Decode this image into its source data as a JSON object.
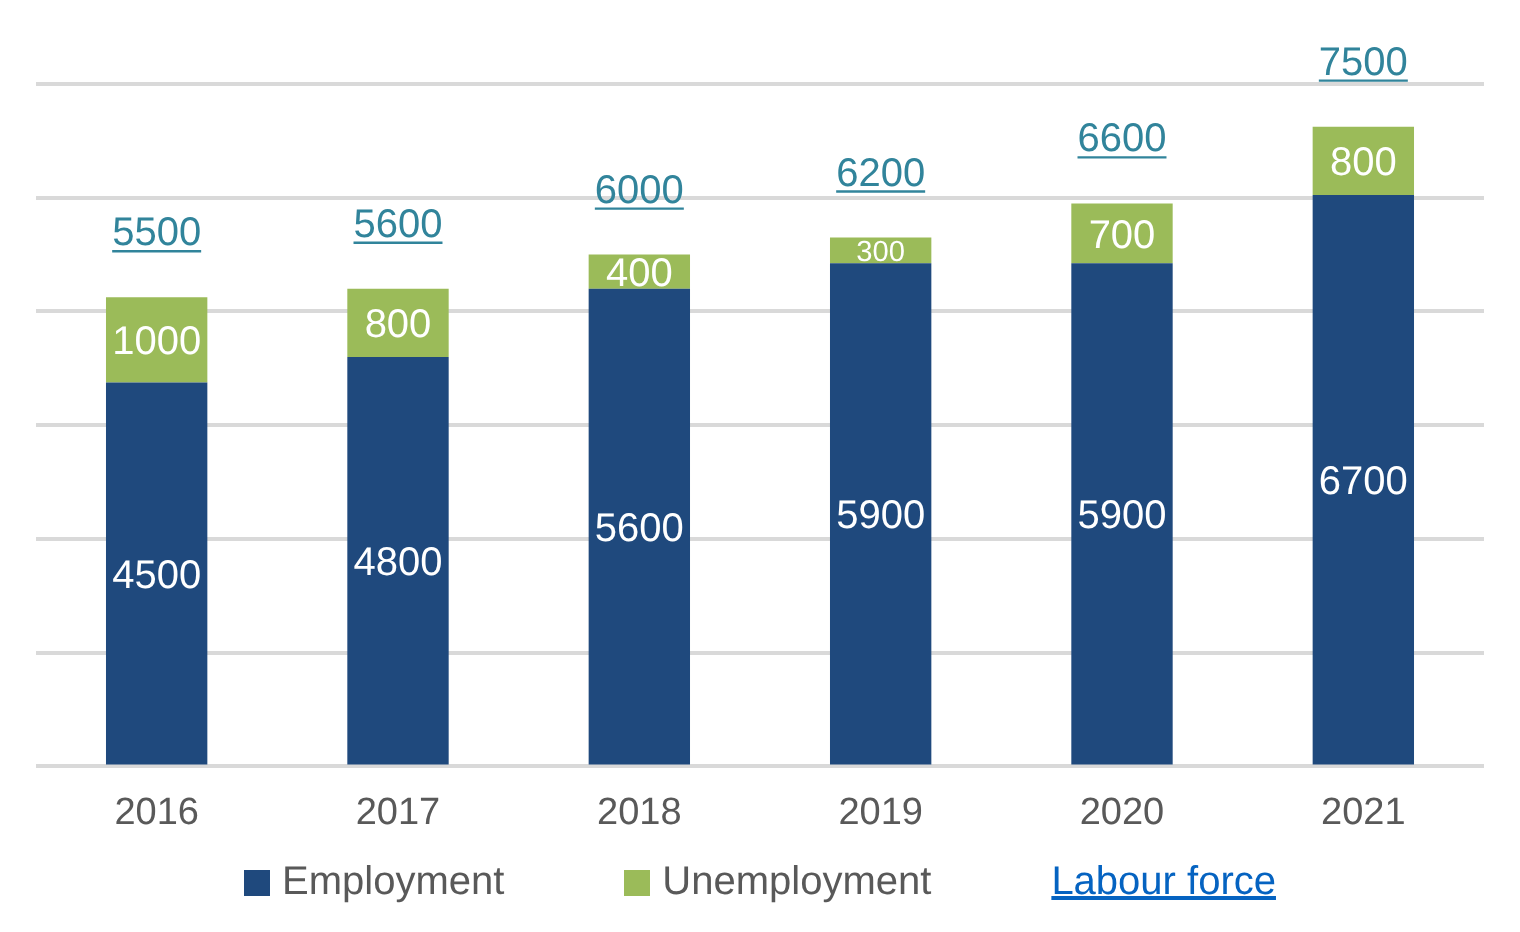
{
  "chart_data": {
    "type": "bar",
    "stacked": true,
    "categories": [
      "2016",
      "2017",
      "2018",
      "2019",
      "2020",
      "2021"
    ],
    "series": [
      {
        "name": "Employment",
        "color": "#1f497d",
        "values": [
          4500,
          4800,
          5600,
          5900,
          5900,
          6700
        ]
      },
      {
        "name": "Unemployment",
        "color": "#9bbb59",
        "values": [
          1000,
          800,
          400,
          300,
          700,
          800
        ]
      }
    ],
    "totals": [
      "5500",
      "5600",
      "6000",
      "6200",
      "6600",
      "7500"
    ],
    "annotations": [
      "Labour force"
    ],
    "data_labels": true,
    "grid": "y",
    "tick_labels": "x",
    "legend": "bottom"
  }
}
